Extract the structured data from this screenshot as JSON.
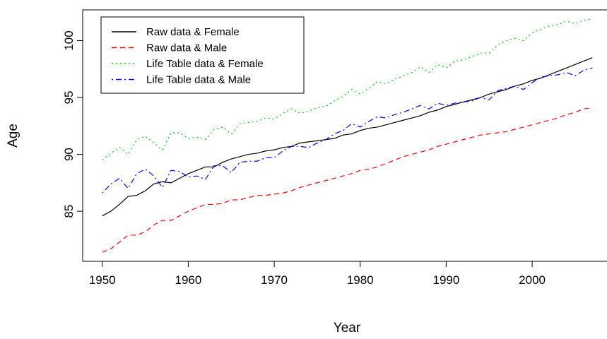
{
  "chart_data": {
    "type": "line",
    "x_label": "Year",
    "y_label": "Age",
    "x": [
      1950,
      1951,
      1952,
      1953,
      1954,
      1955,
      1956,
      1957,
      1958,
      1959,
      1960,
      1961,
      1962,
      1963,
      1964,
      1965,
      1966,
      1967,
      1968,
      1969,
      1970,
      1971,
      1972,
      1973,
      1974,
      1975,
      1976,
      1977,
      1978,
      1979,
      1980,
      1981,
      1982,
      1983,
      1984,
      1985,
      1986,
      1987,
      1988,
      1989,
      1990,
      1991,
      1992,
      1993,
      1994,
      1995,
      1996,
      1997,
      1998,
      1999,
      2000,
      2001,
      2002,
      2003,
      2004,
      2005,
      2006,
      2007
    ],
    "series": [
      {
        "name": "Raw data & Female",
        "color": "#000000",
        "linestyle": "solid",
        "values": [
          84.6,
          85.0,
          85.6,
          86.3,
          86.4,
          86.8,
          87.4,
          87.6,
          87.5,
          87.9,
          88.3,
          88.6,
          88.9,
          88.9,
          89.3,
          89.6,
          89.8,
          90.0,
          90.1,
          90.3,
          90.4,
          90.6,
          90.7,
          91.0,
          91.1,
          91.2,
          91.3,
          91.4,
          91.7,
          91.8,
          92.1,
          92.3,
          92.4,
          92.6,
          92.8,
          93.0,
          93.2,
          93.4,
          93.7,
          93.9,
          94.2,
          94.4,
          94.6,
          94.8,
          95.0,
          95.3,
          95.5,
          95.7,
          96.0,
          96.2,
          96.5,
          96.7,
          97.0,
          97.3,
          97.6,
          97.9,
          98.2,
          98.5
        ]
      },
      {
        "name": "Raw data & Male",
        "color": "#ff0000",
        "linestyle": "dashed",
        "values": [
          81.4,
          81.7,
          82.3,
          82.9,
          82.9,
          83.2,
          83.8,
          84.2,
          84.2,
          84.6,
          85.0,
          85.3,
          85.6,
          85.6,
          85.7,
          86.0,
          86.0,
          86.2,
          86.4,
          86.4,
          86.5,
          86.6,
          86.8,
          87.1,
          87.3,
          87.5,
          87.7,
          87.9,
          88.1,
          88.3,
          88.6,
          88.7,
          88.9,
          89.2,
          89.5,
          89.8,
          90.0,
          90.2,
          90.4,
          90.7,
          90.9,
          91.1,
          91.3,
          91.5,
          91.7,
          91.8,
          91.9,
          92.0,
          92.2,
          92.4,
          92.6,
          92.8,
          93.0,
          93.2,
          93.5,
          93.7,
          94.0,
          94.1
        ]
      },
      {
        "name": "Life Table data & Female",
        "color": "#00cd00",
        "linestyle": "dotted",
        "values": [
          89.5,
          90.1,
          90.6,
          90.0,
          91.3,
          91.6,
          91.0,
          90.4,
          91.9,
          91.9,
          91.4,
          91.5,
          91.3,
          92.2,
          92.4,
          91.8,
          92.7,
          92.8,
          92.9,
          93.2,
          93.1,
          93.6,
          94.0,
          93.6,
          93.8,
          94.1,
          94.2,
          94.7,
          95.1,
          95.7,
          95.3,
          95.8,
          96.4,
          96.2,
          96.6,
          96.9,
          97.2,
          97.7,
          97.2,
          97.9,
          97.6,
          98.2,
          98.3,
          98.6,
          98.9,
          98.9,
          99.6,
          100.0,
          100.2,
          100.0,
          100.7,
          101.0,
          101.3,
          101.4,
          101.7,
          101.5,
          101.8,
          101.9
        ]
      },
      {
        "name": "Life Table data & Male",
        "color": "#0000ff",
        "linestyle": "dotdash",
        "values": [
          86.6,
          87.4,
          87.9,
          87.0,
          88.3,
          88.7,
          88.1,
          87.1,
          88.6,
          88.5,
          88.0,
          88.1,
          87.8,
          89.0,
          89.0,
          88.4,
          89.3,
          89.4,
          89.4,
          89.7,
          89.7,
          90.3,
          90.7,
          90.7,
          90.6,
          91.0,
          91.3,
          91.8,
          92.1,
          92.7,
          92.4,
          92.9,
          93.3,
          93.2,
          93.5,
          93.7,
          94.0,
          94.3,
          94.0,
          94.5,
          94.3,
          94.5,
          94.6,
          94.7,
          95.0,
          94.8,
          95.6,
          95.8,
          96.0,
          95.7,
          96.3,
          96.8,
          96.9,
          97.0,
          97.2,
          96.9,
          97.4,
          97.6
        ]
      }
    ],
    "xlim": [
      1947.72,
      2009.28
    ],
    "ylim": [
      80.6,
      102.7
    ],
    "xticks": [
      1950,
      1960,
      1970,
      1980,
      1990,
      2000
    ],
    "yticks": [
      85,
      90,
      95,
      100
    ],
    "legend": "topleft",
    "grid": false
  }
}
